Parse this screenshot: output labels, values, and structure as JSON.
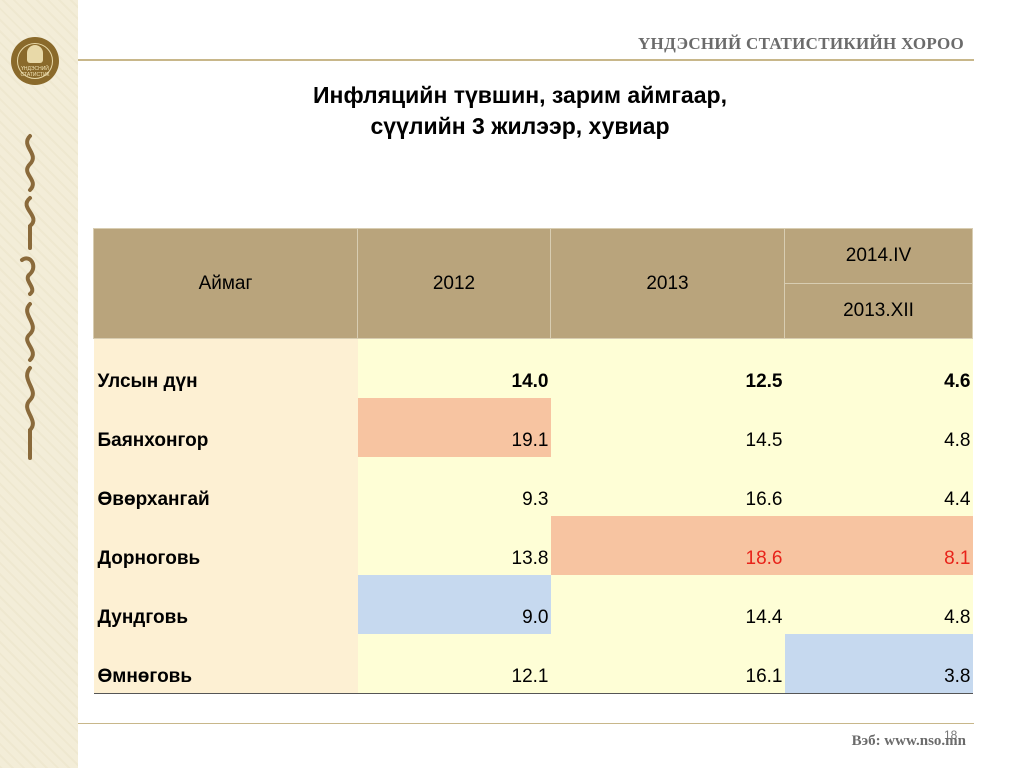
{
  "header": {
    "org_name": "ҮНДЭСНИЙ СТАТИСТИКИЙН ХОРОО",
    "emblem_text": "ҮНДЭСНИЙ СТАТИСТИК"
  },
  "title": {
    "line1": "Инфляцийн түвшин, зарим аймгаар,",
    "line2": "сүүлийн 3 жилээр, хувиар"
  },
  "table": {
    "col_headers": [
      "Аймаг",
      "2012",
      "2013",
      "2014.IV",
      "2013.XII"
    ],
    "rows": [
      {
        "name": "Улсын дүн",
        "v2012": "14.0",
        "v2013": "12.5",
        "v2014": "4.6"
      },
      {
        "name": "Баянхонгор",
        "v2012": "19.1",
        "v2013": "14.5",
        "v2014": "4.8"
      },
      {
        "name": "Өвөрхангай",
        "v2012": "9.3",
        "v2013": "16.6",
        "v2014": "4.4"
      },
      {
        "name": "Дорноговь",
        "v2012": "13.8",
        "v2013": "18.6",
        "v2014": "8.1"
      },
      {
        "name": "Дундговь",
        "v2012": "9.0",
        "v2013": "14.4",
        "v2014": "4.8"
      },
      {
        "name": "Өмнөговь",
        "v2012": "12.1",
        "v2013": "16.1",
        "v2014": "3.8"
      }
    ],
    "colors": {
      "header_bg": "#b9a47c",
      "name_bg": "#fdf0d3",
      "value_bg": "#fefed6",
      "highlight_high": "#f7c4a1",
      "highlight_low": "#c6d9ef",
      "red_text": "#e8231a"
    }
  },
  "footer": {
    "page_number": "18",
    "website": "Вэб: www.nso.mn"
  }
}
